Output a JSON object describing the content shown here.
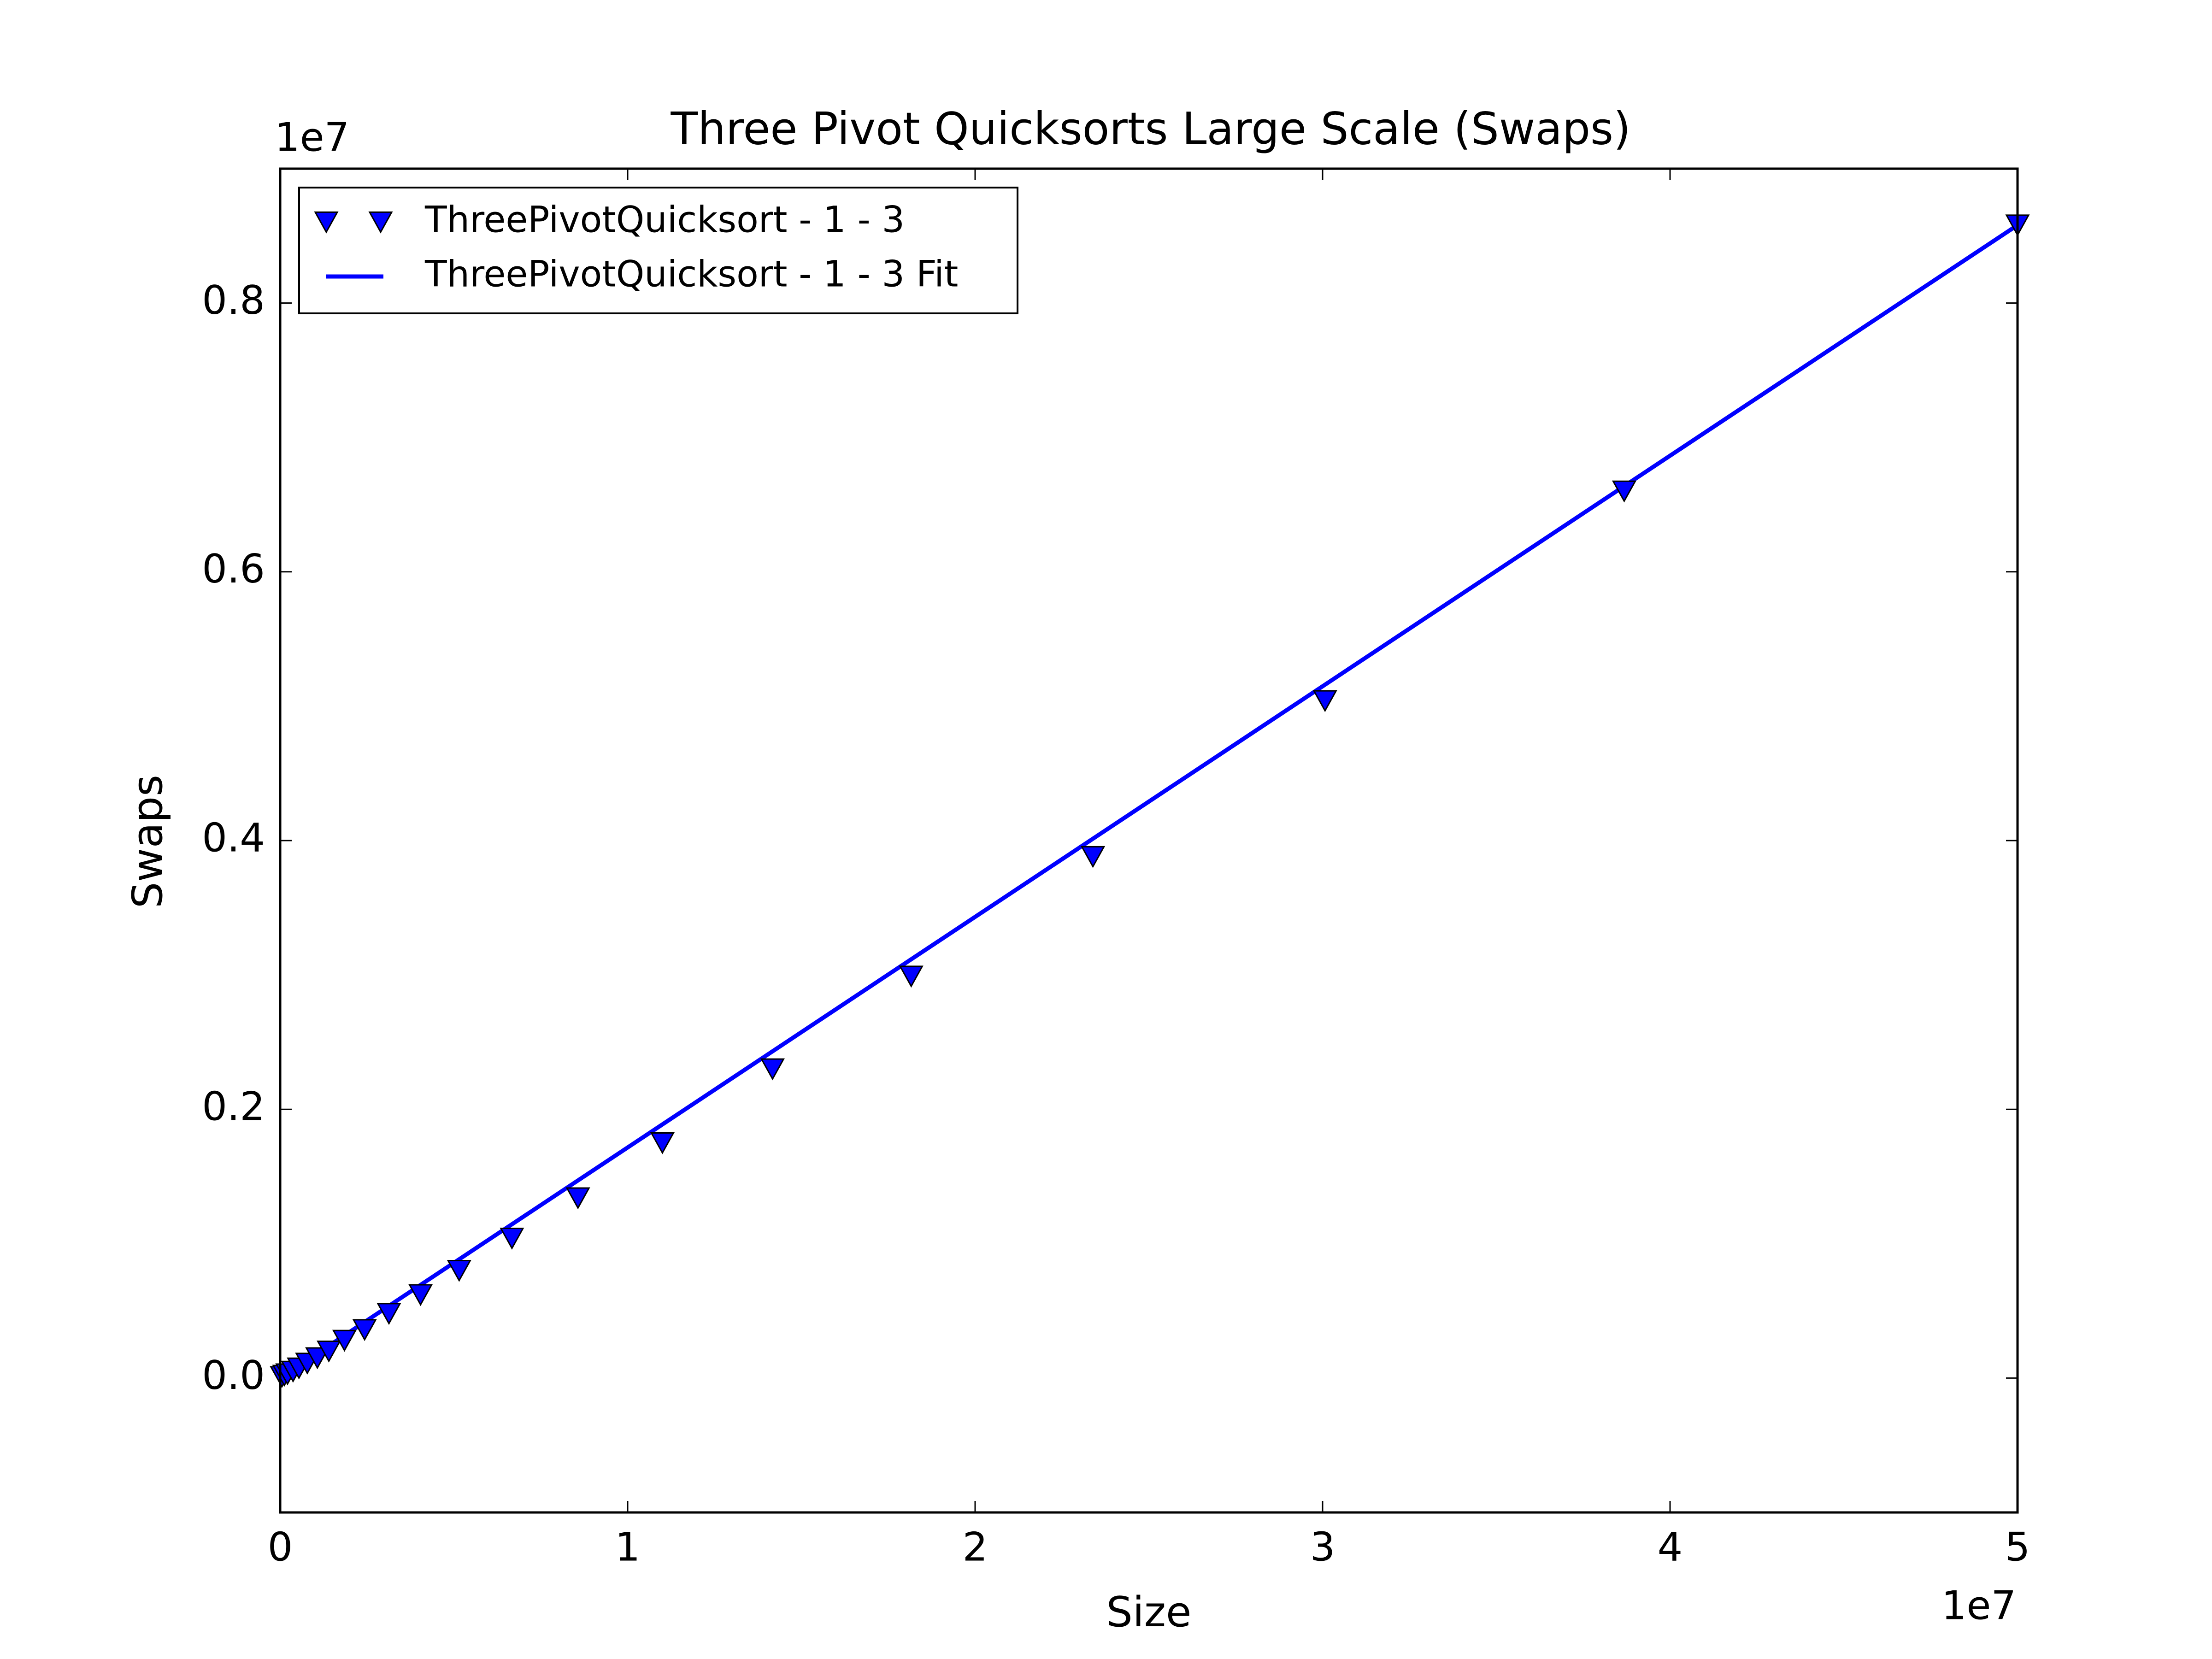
{
  "chart_data": {
    "type": "line",
    "title": "Three Pivot Quicksorts Large Scale (Swaps)",
    "x_label": "Size",
    "y_label": "Swaps",
    "x_offset": "1e7",
    "y_offset": "1e7",
    "xlim": [
      0,
      5
    ],
    "ylim": [
      -0.1,
      0.9
    ],
    "xticks": [
      0,
      1,
      2,
      3,
      4,
      5
    ],
    "yticks": [
      {
        "value": 0,
        "label": "0.0"
      },
      0.2,
      0.4,
      0.6,
      0.8
    ],
    "legend": "upper left",
    "series": [
      {
        "name": "ThreePivotQuicksort - 1 - 3",
        "color": "#0000ff",
        "marker": "v",
        "x": [
          0.005,
          0.012,
          0.021,
          0.037,
          0.054,
          0.078,
          0.107,
          0.14,
          0.185,
          0.243,
          0.313,
          0.404,
          0.515,
          0.667,
          0.857,
          1.1,
          1.417,
          1.816,
          2.339,
          3.007,
          3.868,
          5.0
        ],
        "values": [
          0.001,
          0.002,
          0.003,
          0.005,
          0.0074,
          0.011,
          0.015,
          0.02,
          0.028,
          0.036,
          0.048,
          0.062,
          0.08,
          0.104,
          0.134,
          0.175,
          0.23,
          0.299,
          0.388,
          0.504,
          0.66,
          0.858
        ]
      },
      {
        "name": "ThreePivotQuicksort - 1 - 3 Fit",
        "color": "#0000ff",
        "x": [
          0,
          5
        ],
        "values": [
          0,
          0.858
        ]
      }
    ]
  }
}
